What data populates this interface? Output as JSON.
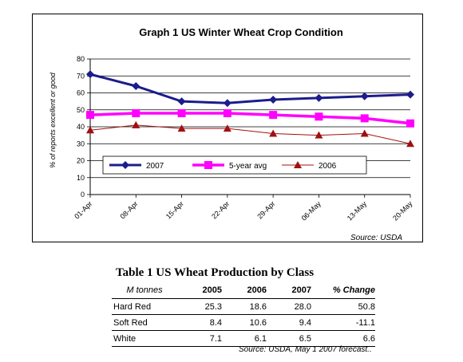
{
  "chart_data": {
    "type": "line",
    "title": "Graph 1 US Winter Wheat Crop Condition",
    "ylabel": "% of reports excellent or good",
    "xlabel": "",
    "categories": [
      "01-Apr",
      "08-Apr",
      "15-Apr",
      "22-Apr",
      "29-Apr",
      "06-May",
      "13-May",
      "20-May"
    ],
    "yticks": [
      0,
      10,
      20,
      30,
      40,
      50,
      60,
      70,
      80
    ],
    "ylim": [
      0,
      80
    ],
    "grid": true,
    "legend_position": "lower-left",
    "series": [
      {
        "name": "2007",
        "color": "#1c1c8c",
        "marker": "diamond",
        "values": [
          71,
          64,
          55,
          54,
          56,
          57,
          58,
          59
        ]
      },
      {
        "name": "5-year avg",
        "color": "#ff00ff",
        "marker": "square",
        "values": [
          47,
          48,
          48,
          48,
          47,
          46,
          45,
          42
        ]
      },
      {
        "name": "2006",
        "color": "#a01010",
        "marker": "triangle",
        "values": [
          38,
          41,
          39,
          39,
          36,
          35,
          36,
          30
        ]
      }
    ],
    "source": "Source: USDA"
  },
  "table": {
    "title": "Table 1   US Wheat Production by Class",
    "headers": [
      "M tonnes",
      "2005",
      "2006",
      "2007",
      "% Change"
    ],
    "rows": [
      [
        "Hard Red",
        "25.3",
        "18.6",
        "28.0",
        "50.8"
      ],
      [
        "Soft Red",
        "8.4",
        "10.6",
        "9.4",
        "-11.1"
      ],
      [
        "White",
        "7.1",
        "6.1",
        "6.5",
        "6.6"
      ]
    ],
    "source": "Source: USDA, May 1 2007 forecast.."
  }
}
